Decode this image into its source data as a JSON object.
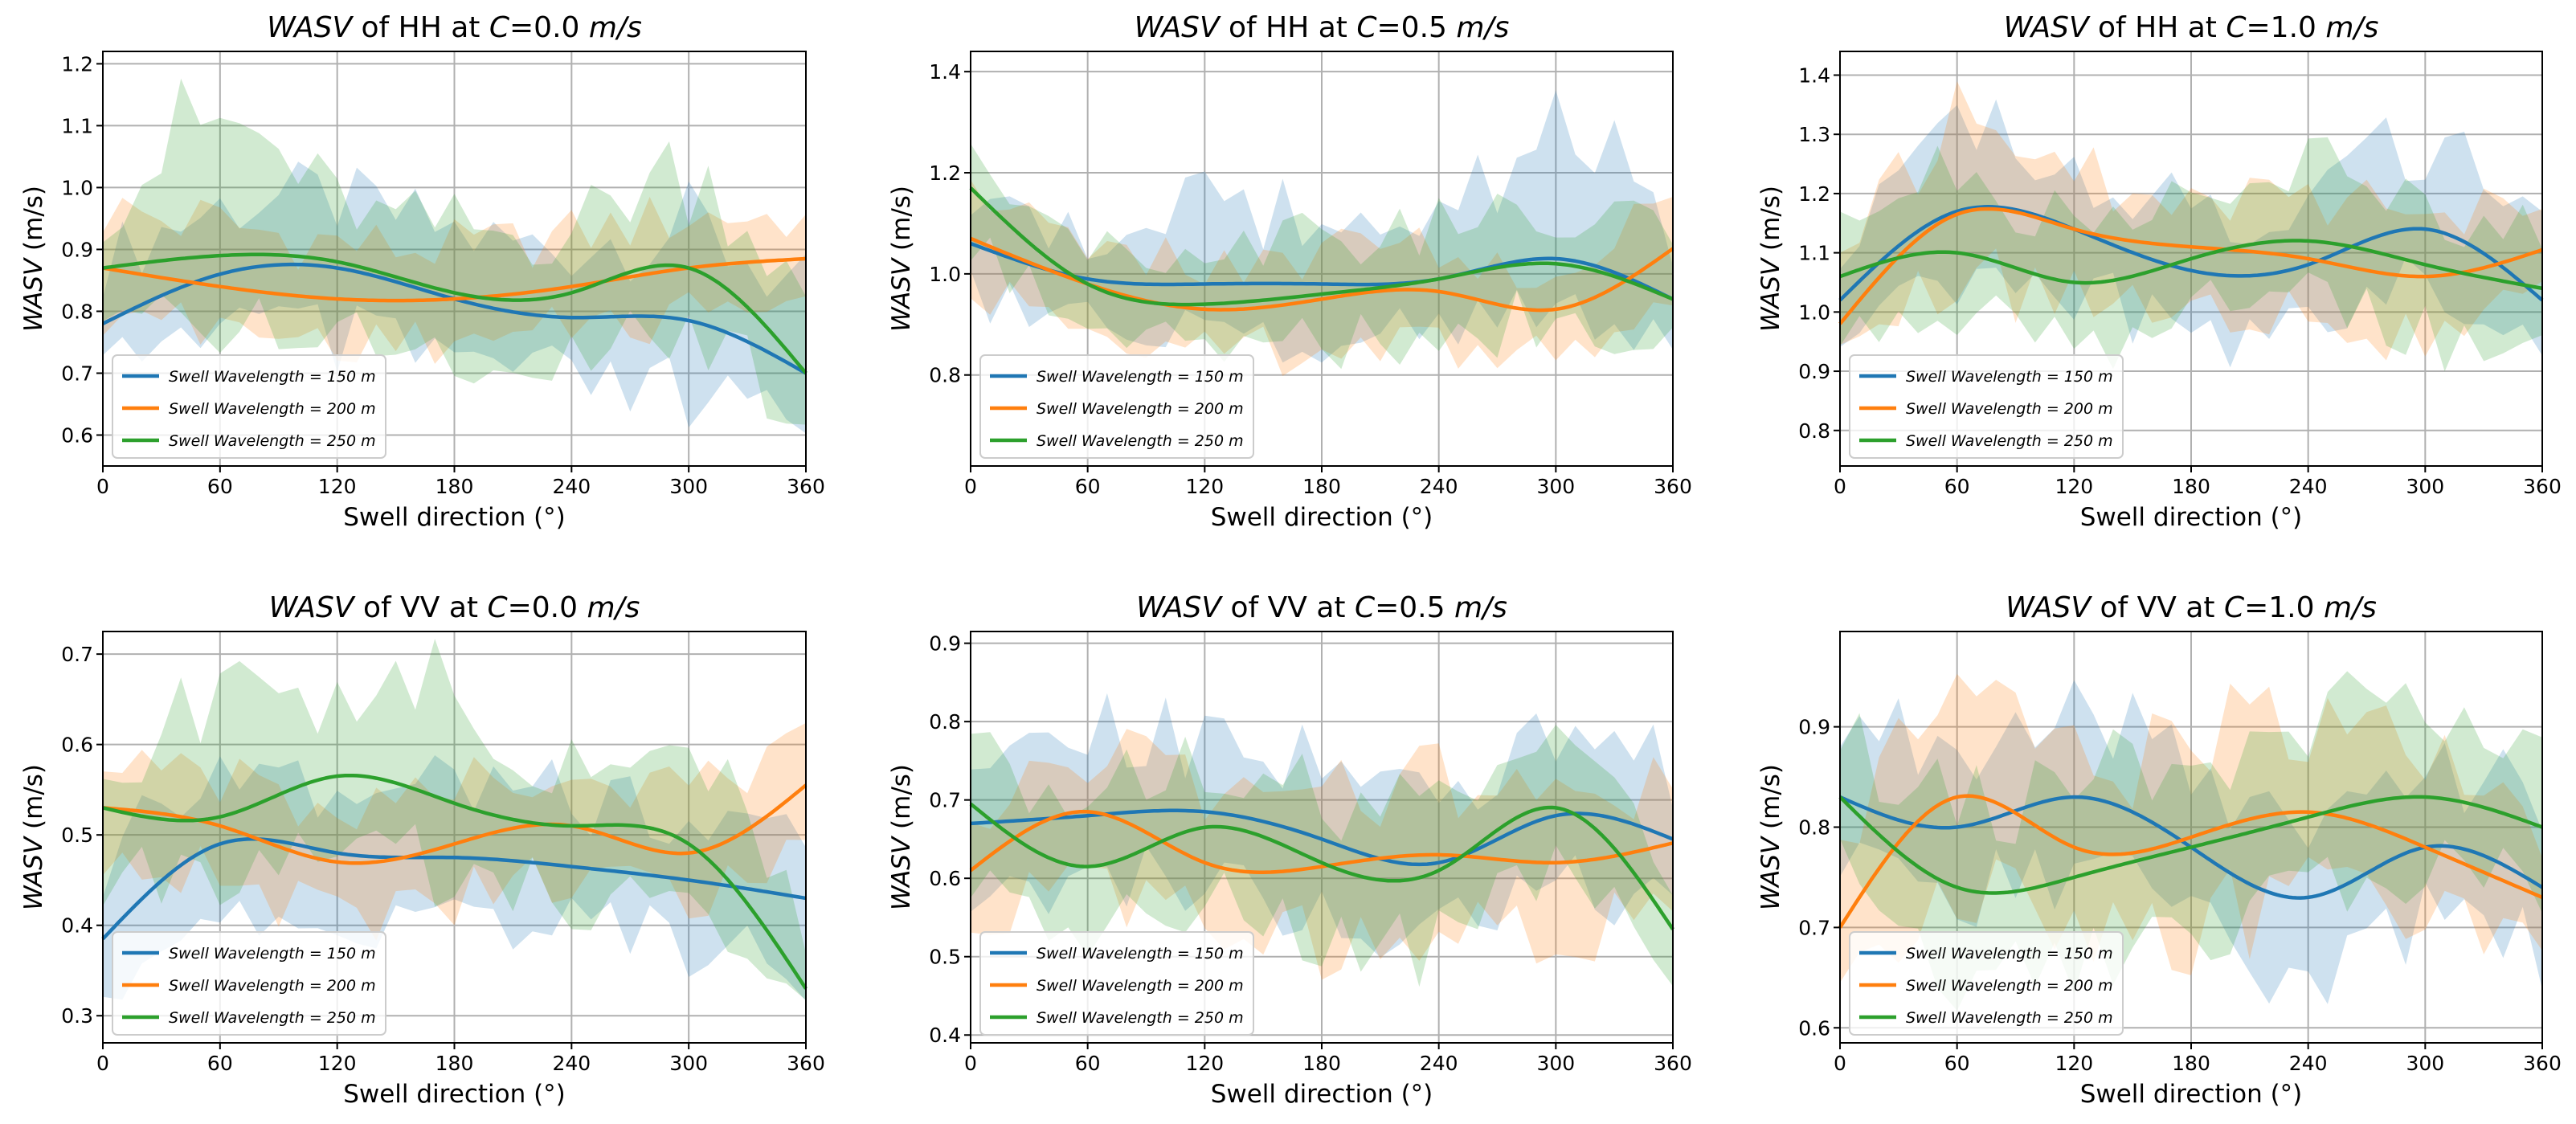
{
  "chart_data": [
    {
      "type": "line",
      "title_parts": {
        "metric": "WASV",
        "pol_text": " of HH at ",
        "c_var": "C",
        "c_val": "=0.0 ",
        "unit": "m/s"
      },
      "xlabel": "Swell direction (°)",
      "ylabel": "WASV (m/s)",
      "ylabel_parts": {
        "metric": "WASV",
        "unit": " (m/s)"
      },
      "x": [
        0,
        60,
        120,
        180,
        240,
        300,
        360
      ],
      "xlim": [
        0,
        360
      ],
      "ylim": [
        0.55,
        1.22
      ],
      "yticks": [
        0.6,
        0.7,
        0.8,
        0.9,
        1.0,
        1.1,
        1.2
      ],
      "ytick_labels": [
        "0.6",
        "0.7",
        "0.8",
        "0.9",
        "1.0",
        "1.1",
        "1.2"
      ],
      "grid": true,
      "legend": "lower-left",
      "series": [
        {
          "name": "150",
          "color": "#1f77b4",
          "values": [
            0.78,
            0.86,
            0.87,
            0.82,
            0.79,
            0.785,
            0.7
          ],
          "band_low": [
            0.7,
            0.76,
            0.72,
            0.7,
            0.66,
            0.62,
            0.58
          ],
          "band_high": [
            0.9,
            0.99,
            1.0,
            0.95,
            0.93,
            0.96,
            0.85
          ]
        },
        {
          "name": "200",
          "color": "#ff7f0e",
          "values": [
            0.87,
            0.84,
            0.82,
            0.82,
            0.84,
            0.87,
            0.885
          ],
          "band_low": [
            0.78,
            0.76,
            0.74,
            0.74,
            0.76,
            0.78,
            0.82
          ],
          "band_high": [
            0.98,
            0.96,
            0.93,
            0.92,
            0.94,
            0.97,
            0.96
          ]
        },
        {
          "name": "250",
          "color": "#2ca02c",
          "values": [
            0.87,
            0.89,
            0.88,
            0.83,
            0.83,
            0.87,
            0.7
          ],
          "band_low": [
            0.78,
            0.76,
            0.76,
            0.7,
            0.72,
            0.74,
            0.6
          ],
          "band_high": [
            0.98,
            1.14,
            1.0,
            0.96,
            0.96,
            1.06,
            0.82
          ]
        }
      ]
    },
    {
      "type": "line",
      "title_parts": {
        "metric": "WASV",
        "pol_text": " of HH at ",
        "c_var": "C",
        "c_val": "=0.5 ",
        "unit": "m/s"
      },
      "xlabel": "Swell direction (°)",
      "ylabel": "WASV (m/s)",
      "ylabel_parts": {
        "metric": "WASV",
        "unit": " (m/s)"
      },
      "x": [
        0,
        60,
        120,
        180,
        240,
        300,
        360
      ],
      "xlim": [
        0,
        360
      ],
      "ylim": [
        0.62,
        1.44
      ],
      "yticks": [
        0.8,
        1.0,
        1.2,
        1.4
      ],
      "ytick_labels": [
        "0.8",
        "1.0",
        "1.2",
        "1.4"
      ],
      "grid": true,
      "legend": "lower-left",
      "series": [
        {
          "name": "150",
          "color": "#1f77b4",
          "values": [
            1.06,
            0.99,
            0.98,
            0.98,
            0.99,
            1.03,
            0.95
          ],
          "band_low": [
            0.94,
            0.9,
            0.86,
            0.86,
            0.86,
            0.9,
            0.86
          ],
          "band_high": [
            1.16,
            1.1,
            1.16,
            1.12,
            1.12,
            1.3,
            1.1
          ]
        },
        {
          "name": "200",
          "color": "#ff7f0e",
          "values": [
            1.07,
            0.98,
            0.93,
            0.95,
            0.965,
            0.93,
            1.05
          ],
          "band_low": [
            0.96,
            0.88,
            0.84,
            0.82,
            0.84,
            0.84,
            0.92
          ],
          "band_high": [
            1.16,
            1.08,
            1.04,
            1.06,
            1.08,
            1.04,
            1.16
          ]
        },
        {
          "name": "250",
          "color": "#2ca02c",
          "values": [
            1.17,
            0.98,
            0.94,
            0.96,
            0.99,
            1.02,
            0.95
          ],
          "band_low": [
            1.04,
            0.88,
            0.84,
            0.84,
            0.86,
            0.88,
            0.84
          ],
          "band_high": [
            1.28,
            1.1,
            1.08,
            1.1,
            1.12,
            1.16,
            1.08
          ]
        }
      ]
    },
    {
      "type": "line",
      "title_parts": {
        "metric": "WASV",
        "pol_text": " of HH at ",
        "c_var": "C",
        "c_val": "=1.0 ",
        "unit": "m/s"
      },
      "xlabel": "Swell direction (°)",
      "ylabel": "WASV (m/s)",
      "ylabel_parts": {
        "metric": "WASV",
        "unit": " (m/s)"
      },
      "x": [
        0,
        60,
        120,
        180,
        240,
        300,
        360
      ],
      "xlim": [
        0,
        360
      ],
      "ylim": [
        0.74,
        1.44
      ],
      "yticks": [
        0.8,
        0.9,
        1.0,
        1.1,
        1.2,
        1.3,
        1.4
      ],
      "ytick_labels": [
        "0.8",
        "0.9",
        "1.0",
        "1.1",
        "1.2",
        "1.3",
        "1.4"
      ],
      "grid": true,
      "legend": "lower-left",
      "series": [
        {
          "name": "150",
          "color": "#1f77b4",
          "values": [
            1.02,
            1.17,
            1.14,
            1.07,
            1.08,
            1.14,
            1.02
          ],
          "band_low": [
            0.92,
            1.04,
            1.02,
            0.94,
            0.96,
            1.02,
            0.92
          ],
          "band_high": [
            1.14,
            1.32,
            1.26,
            1.2,
            1.22,
            1.3,
            1.16
          ]
        },
        {
          "name": "200",
          "color": "#ff7f0e",
          "values": [
            0.98,
            1.165,
            1.14,
            1.11,
            1.09,
            1.06,
            1.105
          ],
          "band_low": [
            0.9,
            1.02,
            1.0,
            0.98,
            0.96,
            0.94,
            1.0
          ],
          "band_high": [
            1.08,
            1.34,
            1.26,
            1.24,
            1.22,
            1.18,
            1.2
          ]
        },
        {
          "name": "250",
          "color": "#2ca02c",
          "values": [
            1.06,
            1.1,
            1.05,
            1.09,
            1.12,
            1.08,
            1.04
          ],
          "band_low": [
            0.96,
            0.98,
            0.92,
            0.96,
            1.0,
            0.92,
            0.92
          ],
          "band_high": [
            1.18,
            1.24,
            1.18,
            1.22,
            1.26,
            1.2,
            1.16
          ]
        }
      ]
    },
    {
      "type": "line",
      "title_parts": {
        "metric": "WASV",
        "pol_text": " of VV at ",
        "c_var": "C",
        "c_val": "=0.0 ",
        "unit": "m/s"
      },
      "xlabel": "Swell direction (°)",
      "ylabel": "WASV (m/s)",
      "ylabel_parts": {
        "metric": "WASV",
        "unit": " (m/s)"
      },
      "x": [
        0,
        60,
        120,
        180,
        240,
        300,
        360
      ],
      "xlim": [
        0,
        360
      ],
      "ylim": [
        0.27,
        0.725
      ],
      "yticks": [
        0.3,
        0.4,
        0.5,
        0.6,
        0.7
      ],
      "ytick_labels": [
        "0.3",
        "0.4",
        "0.5",
        "0.6",
        "0.7"
      ],
      "grid": true,
      "legend": "lower-left",
      "series": [
        {
          "name": "150",
          "color": "#1f77b4",
          "values": [
            0.385,
            0.49,
            0.48,
            0.475,
            0.465,
            0.45,
            0.43
          ],
          "band_low": [
            0.32,
            0.4,
            0.4,
            0.38,
            0.38,
            0.36,
            0.33
          ],
          "band_high": [
            0.46,
            0.6,
            0.58,
            0.6,
            0.56,
            0.54,
            0.52
          ]
        },
        {
          "name": "200",
          "color": "#ff7f0e",
          "values": [
            0.53,
            0.51,
            0.47,
            0.49,
            0.51,
            0.48,
            0.555
          ],
          "band_low": [
            0.46,
            0.44,
            0.4,
            0.42,
            0.44,
            0.42,
            0.48
          ],
          "band_high": [
            0.6,
            0.58,
            0.54,
            0.56,
            0.58,
            0.56,
            0.62
          ]
        },
        {
          "name": "250",
          "color": "#2ca02c",
          "values": [
            0.53,
            0.52,
            0.565,
            0.535,
            0.51,
            0.49,
            0.33
          ],
          "band_low": [
            0.44,
            0.44,
            0.48,
            0.44,
            0.42,
            0.4,
            0.3
          ],
          "band_high": [
            0.6,
            0.66,
            0.66,
            0.68,
            0.6,
            0.6,
            0.44
          ]
        }
      ]
    },
    {
      "type": "line",
      "title_parts": {
        "metric": "WASV",
        "pol_text": " of VV at ",
        "c_var": "C",
        "c_val": "=0.5 ",
        "unit": "m/s"
      },
      "xlabel": "Swell direction (°)",
      "ylabel": "WASV (m/s)",
      "ylabel_parts": {
        "metric": "WASV",
        "unit": " (m/s)"
      },
      "x": [
        0,
        60,
        120,
        180,
        240,
        300,
        360
      ],
      "xlim": [
        0,
        360
      ],
      "ylim": [
        0.39,
        0.915
      ],
      "yticks": [
        0.4,
        0.5,
        0.6,
        0.7,
        0.8,
        0.9
      ],
      "ytick_labels": [
        "0.4",
        "0.5",
        "0.6",
        "0.7",
        "0.8",
        "0.9"
      ],
      "grid": true,
      "legend": "lower-left",
      "series": [
        {
          "name": "150",
          "color": "#1f77b4",
          "values": [
            0.67,
            0.68,
            0.685,
            0.65,
            0.62,
            0.68,
            0.65
          ],
          "band_low": [
            0.58,
            0.58,
            0.58,
            0.54,
            0.52,
            0.56,
            0.54
          ],
          "band_high": [
            0.76,
            0.8,
            0.8,
            0.76,
            0.72,
            0.8,
            0.76
          ]
        },
        {
          "name": "200",
          "color": "#ff7f0e",
          "values": [
            0.61,
            0.685,
            0.62,
            0.615,
            0.63,
            0.62,
            0.645
          ],
          "band_low": [
            0.52,
            0.58,
            0.52,
            0.5,
            0.52,
            0.52,
            0.54
          ],
          "band_high": [
            0.7,
            0.78,
            0.72,
            0.72,
            0.74,
            0.72,
            0.74
          ]
        },
        {
          "name": "250",
          "color": "#2ca02c",
          "values": [
            0.695,
            0.615,
            0.665,
            0.62,
            0.61,
            0.69,
            0.535
          ],
          "band_low": [
            0.6,
            0.52,
            0.56,
            0.5,
            0.5,
            0.58,
            0.45
          ],
          "band_high": [
            0.78,
            0.72,
            0.78,
            0.72,
            0.72,
            0.8,
            0.64
          ]
        }
      ]
    },
    {
      "type": "line",
      "title_parts": {
        "metric": "WASV",
        "pol_text": " of VV at ",
        "c_var": "C",
        "c_val": "=1.0 ",
        "unit": "m/s"
      },
      "xlabel": "Swell direction (°)",
      "ylabel": "WASV (m/s)",
      "ylabel_parts": {
        "metric": "WASV",
        "unit": " (m/s)"
      },
      "x": [
        0,
        60,
        120,
        180,
        240,
        300,
        360
      ],
      "xlim": [
        0,
        360
      ],
      "ylim": [
        0.585,
        0.995
      ],
      "yticks": [
        0.6,
        0.7,
        0.8,
        0.9
      ],
      "ytick_labels": [
        "0.6",
        "0.7",
        "0.8",
        "0.9"
      ],
      "grid": true,
      "legend": "lower-left",
      "series": [
        {
          "name": "150",
          "color": "#1f77b4",
          "values": [
            0.83,
            0.8,
            0.83,
            0.78,
            0.73,
            0.78,
            0.74
          ],
          "band_low": [
            0.74,
            0.72,
            0.74,
            0.68,
            0.64,
            0.68,
            0.66
          ],
          "band_high": [
            0.92,
            0.9,
            0.94,
            0.88,
            0.82,
            0.88,
            0.84
          ]
        },
        {
          "name": "200",
          "color": "#ff7f0e",
          "values": [
            0.7,
            0.83,
            0.78,
            0.79,
            0.815,
            0.78,
            0.73
          ],
          "band_low": [
            0.62,
            0.72,
            0.68,
            0.68,
            0.7,
            0.68,
            0.64
          ],
          "band_high": [
            0.8,
            0.94,
            0.88,
            0.9,
            0.92,
            0.88,
            0.82
          ]
        },
        {
          "name": "250",
          "color": "#2ca02c",
          "values": [
            0.83,
            0.74,
            0.75,
            0.78,
            0.81,
            0.83,
            0.8
          ],
          "band_low": [
            0.74,
            0.64,
            0.66,
            0.68,
            0.72,
            0.74,
            0.72
          ],
          "band_high": [
            0.92,
            0.84,
            0.86,
            0.88,
            0.92,
            0.94,
            0.9
          ]
        }
      ]
    }
  ],
  "legend_template": {
    "prefix": "Swell Wavelength",
    "eq": " = ",
    "unit": " m"
  }
}
